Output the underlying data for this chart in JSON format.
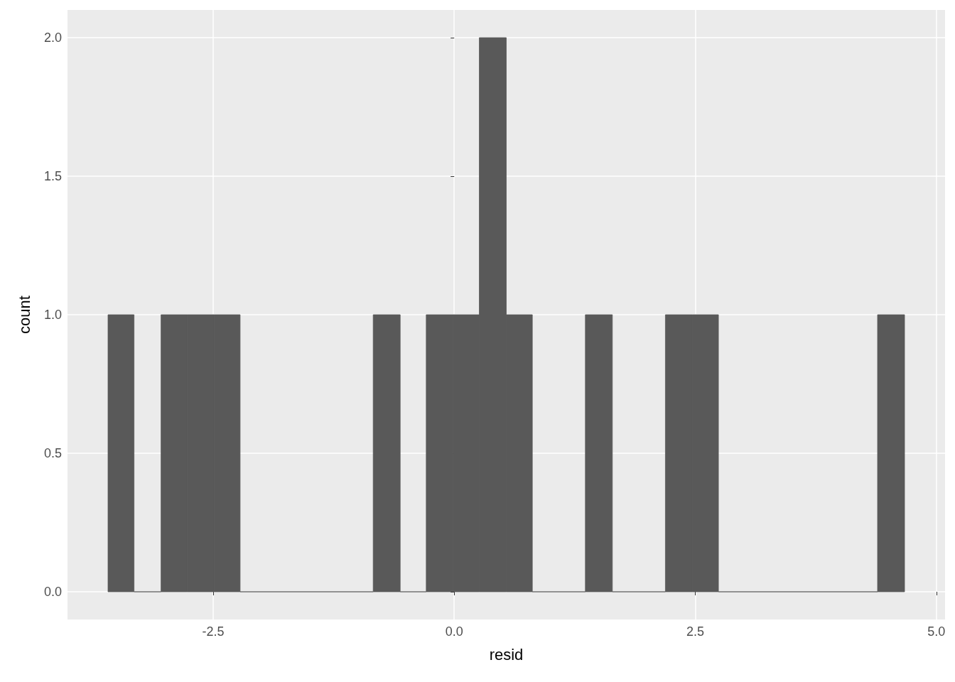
{
  "chart_data": {
    "type": "histogram",
    "xlabel": "resid",
    "ylabel": "count",
    "bins": [
      -3.59,
      -3.32,
      -3.04,
      -2.77,
      -2.49,
      -2.22,
      -0.84,
      -0.56,
      -0.29,
      -0.01,
      0.26,
      0.54,
      0.81,
      1.36,
      1.64,
      2.19,
      2.47,
      2.74,
      4.39,
      4.67
    ],
    "values": [
      1,
      0,
      1,
      1,
      1,
      0,
      1,
      0,
      1,
      1,
      2,
      1,
      0,
      1,
      0,
      1,
      1,
      0,
      1
    ],
    "color": "#595959",
    "xlim": [
      -4.01,
      5.09
    ],
    "xticks": [
      {
        "value": -2.5,
        "label": "-2.5"
      },
      {
        "value": 0,
        "label": "0.0"
      },
      {
        "value": 2.5,
        "label": "2.5"
      },
      {
        "value": 5,
        "label": "5.0"
      }
    ],
    "ylim": [
      -0.1,
      2.1
    ],
    "yticks": [
      {
        "value": 0,
        "label": "0.0"
      },
      {
        "value": 0.5,
        "label": "0.5"
      },
      {
        "value": 1,
        "label": "1.0"
      },
      {
        "value": 1.5,
        "label": "1.5"
      },
      {
        "value": 2,
        "label": "2.0"
      }
    ],
    "grid": true
  }
}
